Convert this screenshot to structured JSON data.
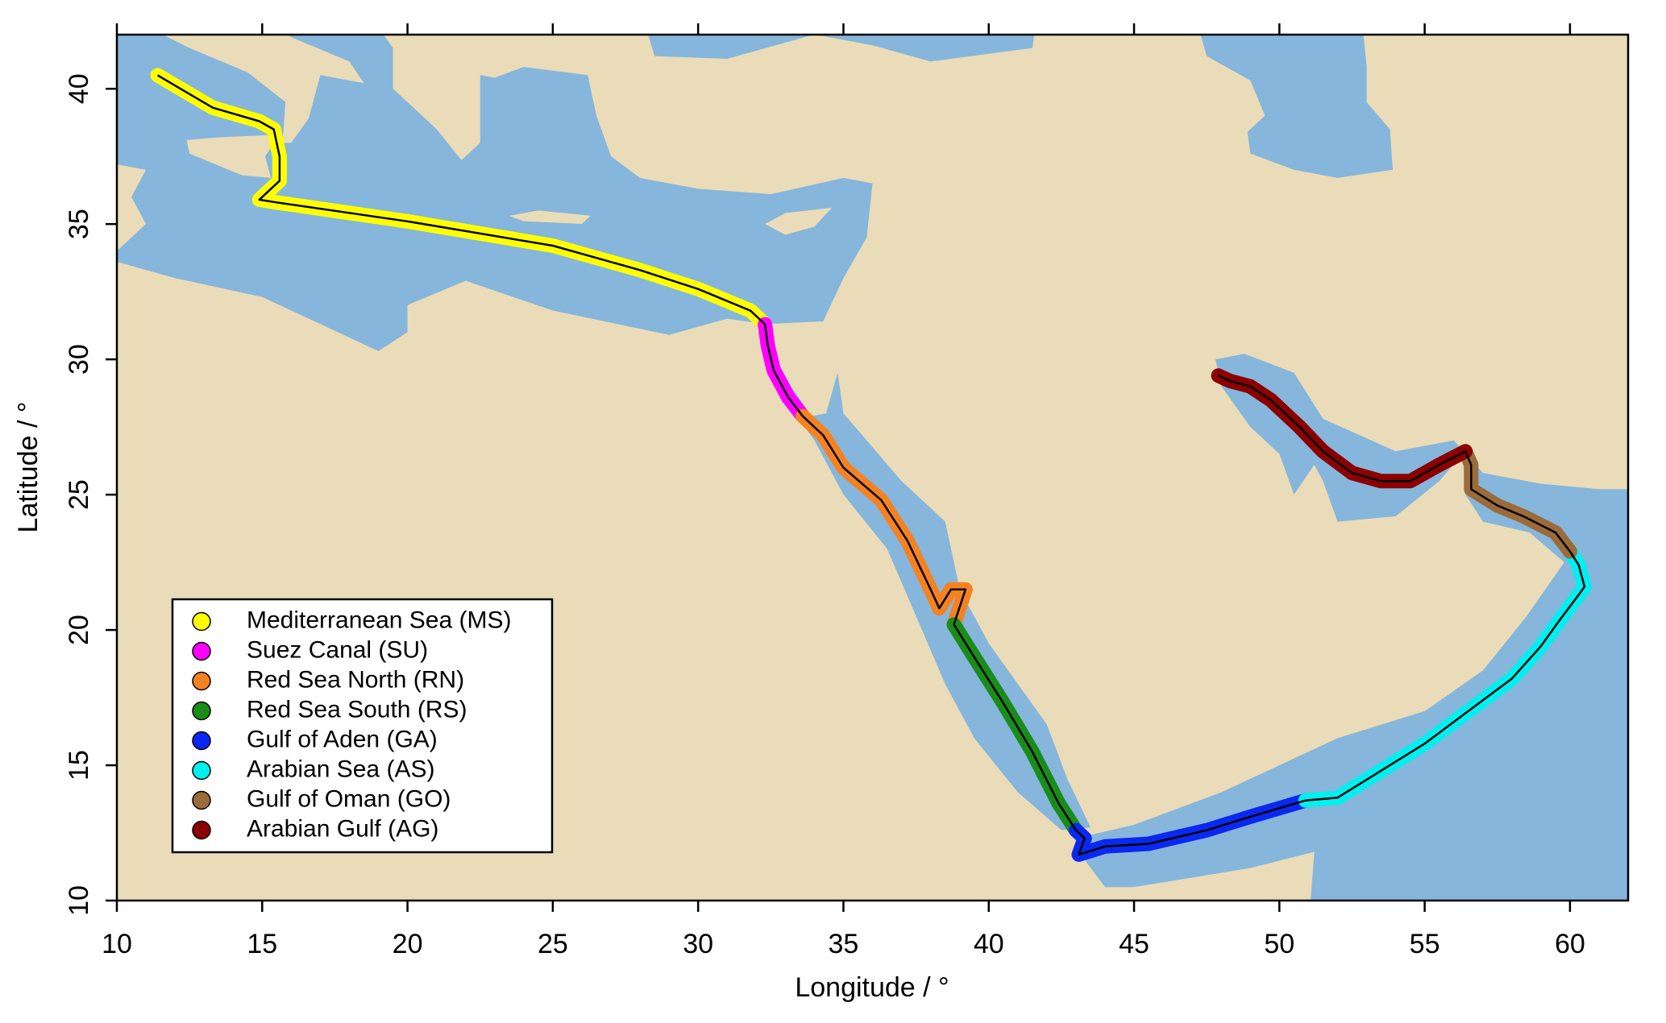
{
  "chart_data": {
    "type": "map",
    "xlabel": "Longitude / °",
    "ylabel": "Latitude / °",
    "xlim": [
      10,
      62
    ],
    "ylim": [
      10,
      42
    ],
    "xticks": [
      10,
      15,
      20,
      25,
      30,
      35,
      40,
      45,
      50,
      55,
      60
    ],
    "yticks": [
      10,
      15,
      20,
      25,
      30,
      35,
      40
    ],
    "legend": "lower left",
    "series": [
      {
        "name": "Mediterranean Sea (MS)",
        "color": "#ffff00",
        "lon": [
          11.4,
          13.3,
          14.9,
          15.4,
          15.6,
          15.6,
          14.9,
          15.5,
          20,
          25,
          28,
          30,
          31.8,
          32.3
        ],
        "lat": [
          40.5,
          39.3,
          38.8,
          38.5,
          37.5,
          36.6,
          35.9,
          35.8,
          35.1,
          34.2,
          33.3,
          32.6,
          31.8,
          31.3
        ]
      },
      {
        "name": "Suez Canal (SU)",
        "color": "#ff00ff",
        "lon": [
          32.3,
          32.4,
          32.6,
          33.1,
          33.6
        ],
        "lat": [
          31.3,
          30.5,
          29.6,
          28.6,
          27.9
        ]
      },
      {
        "name": "Red Sea North (RN)",
        "color": "#f58220",
        "lon": [
          33.6,
          34.3,
          35,
          36.3,
          37.2,
          38,
          38.3,
          38.7,
          39.2,
          38.8
        ],
        "lat": [
          27.9,
          27.2,
          26,
          24.8,
          23.3,
          21.5,
          20.8,
          21.5,
          21.5,
          20.2
        ]
      },
      {
        "name": "Red Sea South (RS)",
        "color": "#1a8c1a",
        "lon": [
          38.8,
          39.5,
          40.5,
          41.5,
          42.4,
          43
        ],
        "lat": [
          20.2,
          19,
          17.3,
          15.5,
          13.6,
          12.6
        ]
      },
      {
        "name": "Gulf of Aden (GA)",
        "color": "#0a28f0",
        "lon": [
          43,
          43.3,
          43.1,
          44,
          45.5,
          47.5,
          49,
          50.9
        ],
        "lat": [
          12.6,
          12.3,
          11.7,
          12,
          12.1,
          12.6,
          13.1,
          13.7
        ]
      },
      {
        "name": "Arabian Sea (AS)",
        "color": "#00f0f0",
        "lon": [
          50.9,
          52,
          53.5,
          55,
          56.5,
          58,
          59,
          59.6,
          60.3,
          60.5,
          60.3,
          60
        ],
        "lat": [
          13.7,
          13.8,
          14.8,
          15.8,
          17,
          18.2,
          19.4,
          20.3,
          21.3,
          21.6,
          22.4,
          22.9
        ]
      },
      {
        "name": "Gulf of Oman (GO)",
        "color": "#9c6b3a",
        "lon": [
          60,
          59.5,
          58.4,
          57.5,
          56.6,
          56.6,
          56.4
        ],
        "lat": [
          22.9,
          23.6,
          24.2,
          24.6,
          25.2,
          26.1,
          26.6
        ]
      },
      {
        "name": "Arabian Gulf (AG)",
        "color": "#8b0000",
        "lon": [
          56.4,
          55.5,
          54.5,
          53.5,
          52.5,
          51.5,
          50.7,
          49.7,
          49,
          48.3,
          47.9
        ],
        "lat": [
          26.6,
          26.1,
          25.5,
          25.5,
          25.8,
          26.6,
          27.5,
          28.5,
          29,
          29.2,
          29.4
        ]
      }
    ]
  }
}
